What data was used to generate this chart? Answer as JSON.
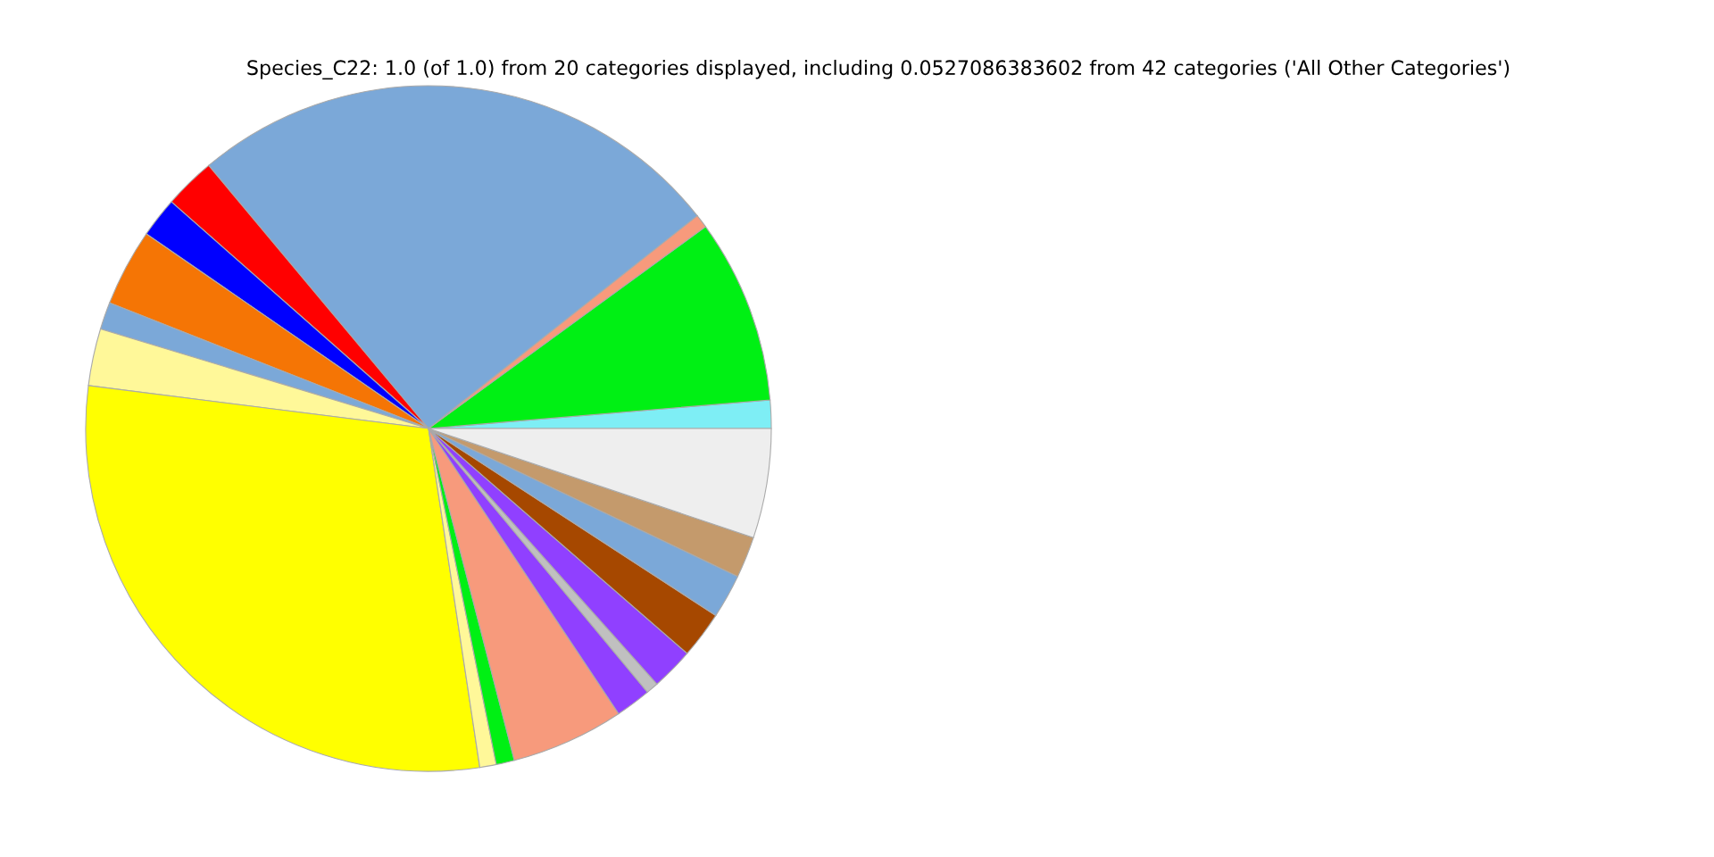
{
  "chart_data": {
    "type": "pie",
    "title": "Species_C22: 1.0 (of 1.0) from 20 categories displayed, including 0.0527086383602 from 42 categories ('All Other Categories')",
    "categories": [
      null,
      null,
      null,
      null,
      null,
      null,
      null,
      null,
      null,
      null,
      null,
      null,
      null,
      null,
      null,
      null,
      null,
      null,
      null,
      null
    ],
    "values": [
      1.33,
      8.69,
      0.64,
      25.42,
      2.42,
      1.89,
      3.64,
      1.28,
      2.69,
      29.39,
      0.78,
      0.86,
      5.33,
      1.67,
      0.58,
      2.0,
      2.21,
      2.08,
      1.94,
      5.16
    ],
    "colors": [
      "#7eeef5",
      "#00f014",
      "#f79a7c",
      "#7ba8d8",
      "#ff0000",
      "#0000ff",
      "#f57505",
      "#7ba8d8",
      "#fff899",
      "#ffff00",
      "#fff899",
      "#00f014",
      "#f79a7c",
      "#9040ff",
      "#c0c0c0",
      "#9040ff",
      "#a64800",
      "#7ba8d8",
      "#c49a6c",
      "#eeeeee"
    ]
  }
}
